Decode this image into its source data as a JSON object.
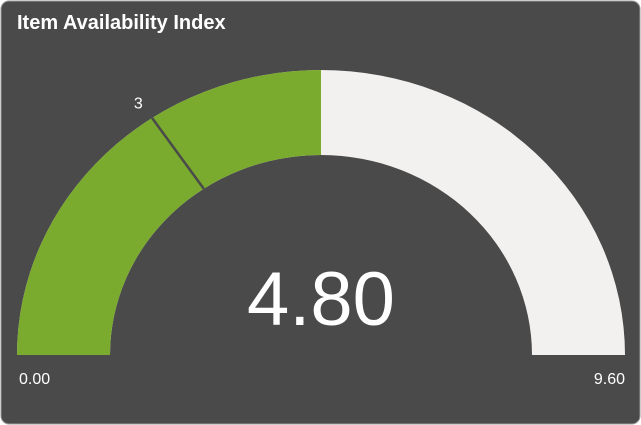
{
  "chart_data": {
    "type": "gauge",
    "title": "Item Availability Index",
    "values": [
      4.8
    ],
    "value_labels": [
      "4.80"
    ],
    "color": "#7aab2e",
    "track_color": "#f2f1ef",
    "ylim": [
      0,
      9.6
    ],
    "yticks": [
      {
        "value": 0,
        "label": "0.00"
      },
      {
        "value": 9.6,
        "label": "9.60"
      }
    ],
    "markers": [
      3
    ]
  }
}
